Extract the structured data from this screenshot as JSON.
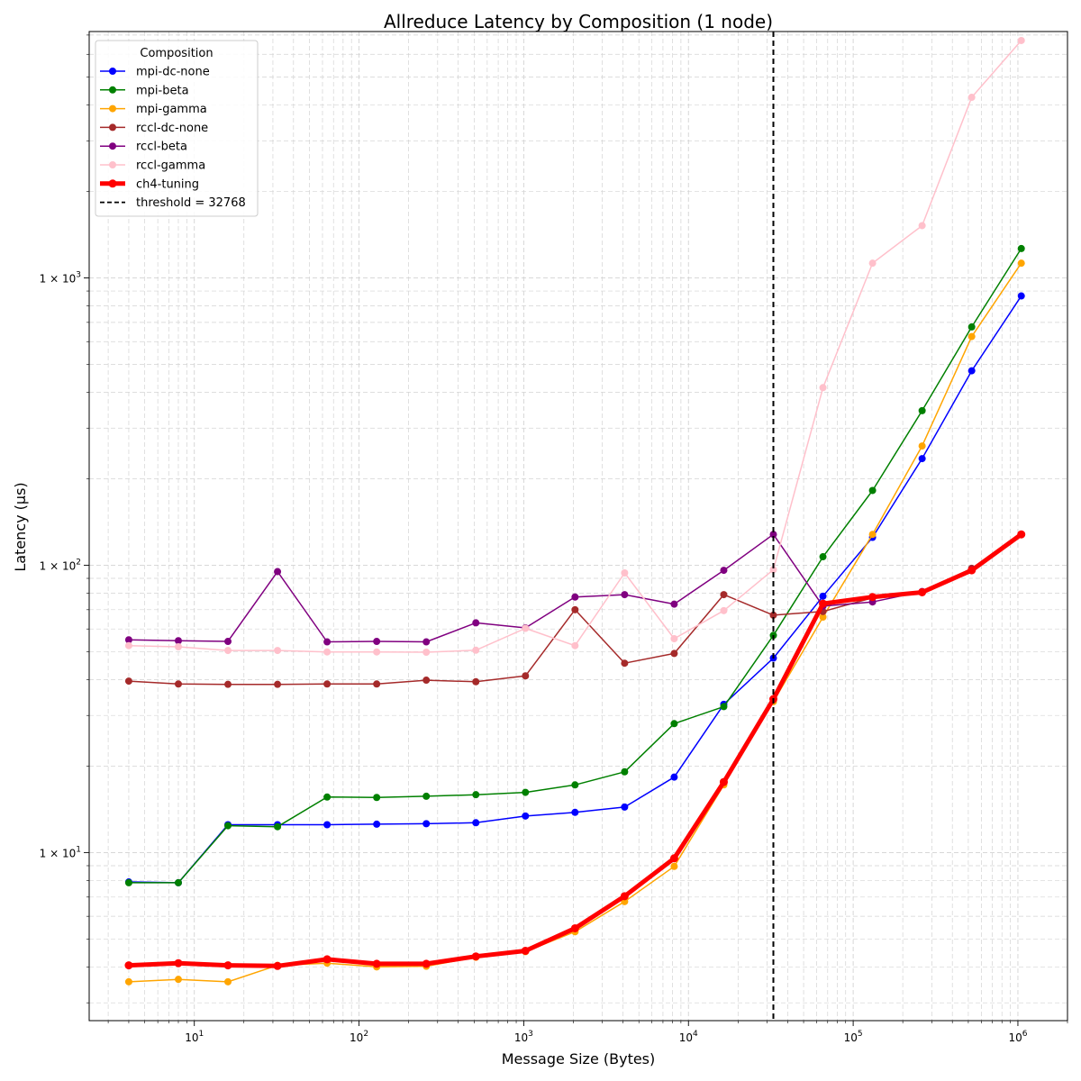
{
  "chart_data": {
    "type": "line",
    "title": "Allreduce Latency by Composition (1 node)",
    "xlabel": "Message Size (Bytes)",
    "ylabel": "Latency (µs)",
    "x_scale": "log",
    "y_scale": "log",
    "xlim": [
      2.3,
      2000000
    ],
    "ylim": [
      2.6,
      7200
    ],
    "grid": true,
    "legend_title": "Composition",
    "legend_position": "top-left",
    "x_ticks": [
      {
        "value": 10,
        "base": "10",
        "exp": "1"
      },
      {
        "value": 100,
        "base": "10",
        "exp": "2"
      },
      {
        "value": 1000,
        "base": "10",
        "exp": "3"
      },
      {
        "value": 10000,
        "base": "10",
        "exp": "4"
      },
      {
        "value": 100000,
        "base": "10",
        "exp": "5"
      },
      {
        "value": 1000000,
        "base": "10",
        "exp": "6"
      }
    ],
    "y_ticks": [
      {
        "value": 10,
        "prefix": "1 × 10",
        "exp": "1"
      },
      {
        "value": 100,
        "prefix": "1 × 10",
        "exp": "2"
      },
      {
        "value": 1000,
        "prefix": "1 × 10",
        "exp": "3"
      }
    ],
    "x": [
      4,
      8,
      16,
      32,
      64,
      128,
      256,
      512,
      1024,
      2048,
      4096,
      8192,
      16384,
      32768,
      65536,
      131072,
      262144,
      524288,
      1048576
    ],
    "series": [
      {
        "name": "mpi-dc-none",
        "color": "#0000ff",
        "width": 1.5,
        "values": [
          7.9,
          7.85,
          12.5,
          12.5,
          12.5,
          12.55,
          12.6,
          12.7,
          13.4,
          13.8,
          14.4,
          18.3,
          32.8,
          47.5,
          78,
          125,
          235,
          475,
          865
        ]
      },
      {
        "name": "mpi-beta",
        "color": "#008000",
        "width": 1.5,
        "values": [
          7.85,
          7.85,
          12.4,
          12.3,
          15.6,
          15.55,
          15.7,
          15.9,
          16.2,
          17.2,
          19.1,
          28.1,
          32.2,
          57,
          107,
          182,
          345,
          675,
          1265
        ]
      },
      {
        "name": "mpi-gamma",
        "color": "#ffa500",
        "width": 1.5,
        "values": [
          3.55,
          3.62,
          3.55,
          4.05,
          4.12,
          4.0,
          4.02,
          4.32,
          4.52,
          5.3,
          6.75,
          8.95,
          17.2,
          33.5,
          66,
          128,
          260,
          625,
          1125
        ]
      },
      {
        "name": "rccl-dc-none",
        "color": "#a52a2a",
        "width": 1.5,
        "values": [
          39.5,
          38.6,
          38.5,
          38.5,
          38.6,
          38.6,
          39.8,
          39.3,
          41.2,
          70,
          45.6,
          49.3,
          79,
          67,
          69,
          77,
          80.5,
          97.5,
          128
        ]
      },
      {
        "name": "rccl-beta",
        "color": "#800080",
        "width": 1.5,
        "values": [
          55,
          54.6,
          54.3,
          95,
          54.1,
          54.3,
          54.1,
          63,
          60.5,
          77.5,
          79,
          73.2,
          96,
          128,
          72,
          74.5,
          81,
          96.5,
          128
        ]
      },
      {
        "name": "rccl-gamma",
        "color": "#ffc0cb",
        "width": 1.5,
        "values": [
          52.5,
          52,
          50.5,
          50.5,
          49.9,
          49.9,
          49.8,
          50.6,
          60.3,
          52.5,
          94,
          55.5,
          69.5,
          96.5,
          415,
          1125,
          1520,
          4250,
          6700
        ]
      },
      {
        "name": "ch4-tuning",
        "color": "#ff0000",
        "width": 5,
        "values": [
          4.05,
          4.12,
          4.05,
          4.03,
          4.25,
          4.1,
          4.1,
          4.35,
          4.55,
          5.45,
          7.05,
          9.55,
          17.6,
          34.2,
          73.5,
          77.5,
          80.5,
          96,
          128
        ]
      }
    ],
    "threshold": {
      "name": "threshold = 32768",
      "value": 32768,
      "color": "#000000"
    }
  }
}
